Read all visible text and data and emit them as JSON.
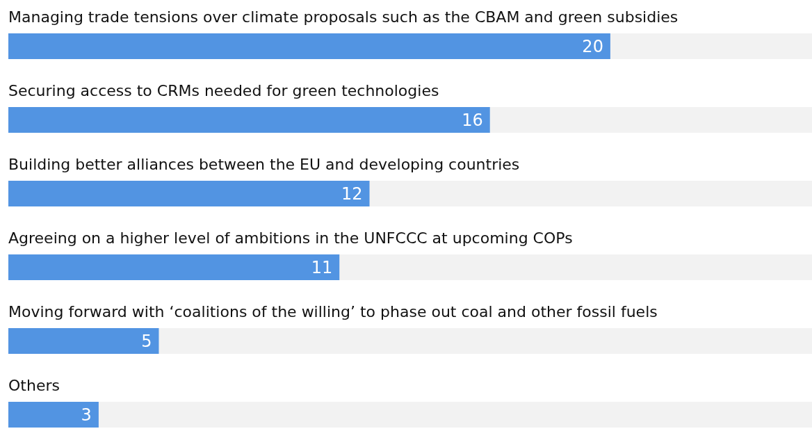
{
  "chart_data": {
    "type": "bar",
    "orientation": "horizontal",
    "categories": [
      "Managing trade tensions over climate proposals such as the CBAM and green subsidies",
      "Securing access to CRMs needed for green technologies",
      "Building better alliances between the EU and developing countries",
      "Agreeing on a higher level of ambitions in the UNFCCC at upcoming COPs",
      "Moving forward with ‘coalitions of the willing’ to phase out coal and other fossil fuels",
      "Others"
    ],
    "values": [
      20,
      16,
      12,
      11,
      5,
      3
    ],
    "color": "#5294e2",
    "xlim": [
      0,
      26.7
    ],
    "data_labels": true
  }
}
